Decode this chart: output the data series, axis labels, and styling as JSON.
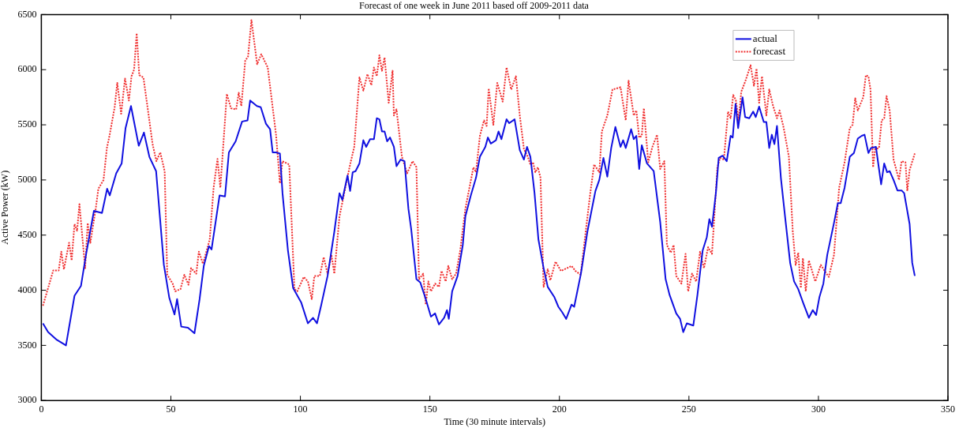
{
  "chart_data": {
    "type": "line",
    "title": "Forecast of one week in June 2011 based off 2009-2011 data",
    "xlabel": "Time (30 minute intervals)",
    "ylabel": "Active Power (kW)",
    "xlim": [
      0,
      350
    ],
    "xticks": [
      0,
      50,
      100,
      150,
      200,
      250,
      300,
      350
    ],
    "ylim": [
      3000,
      6500
    ],
    "yticks": [
      3000,
      3500,
      4000,
      4500,
      5000,
      5500,
      6000,
      6500
    ],
    "grid": false,
    "legend": "top right",
    "marker": "none",
    "series": [
      {
        "name": "actual",
        "color": "#1010e0",
        "line_style": "solid",
        "x": [
          0.6,
          2.6,
          6,
          9.5,
          12.8,
          15.3,
          17.3,
          20.3,
          23.4,
          25.4,
          26.4,
          28.9,
          31,
          32.5,
          34.6,
          37.6,
          39.6,
          41.7,
          44.3,
          47.3,
          49.4,
          51.4,
          52.4,
          54,
          56.6,
          59.1,
          61.1,
          62.7,
          64.7,
          65.7,
          68.8,
          70.9,
          72.4,
          75,
          77.5,
          79.6,
          80.6,
          83.2,
          84.7,
          86.7,
          88.3,
          89.3,
          90.6,
          92.1,
          93.1,
          95.2,
          97.2,
          100.3,
          102.9,
          104.9,
          106.4,
          108,
          110.5,
          113.1,
          115.1,
          116.2,
          118.2,
          119.2,
          120.2,
          121.3,
          122.8,
          124.3,
          125.4,
          126.9,
          128.4,
          129.5,
          130.5,
          131.5,
          132.5,
          133.5,
          134.6,
          136.1,
          137.1,
          138.7,
          140.2,
          141.7,
          142.8,
          144.8,
          146.3,
          148.4,
          150.4,
          152,
          153.5,
          155.5,
          156.6,
          157.3,
          158.6,
          160.7,
          162.7,
          163.7,
          165.8,
          167.8,
          169.3,
          171.4,
          172.4,
          173.5,
          175.5,
          176.5,
          177.6,
          179.6,
          180.6,
          182.7,
          184.7,
          186.3,
          187.5,
          188.8,
          190.4,
          191.9,
          193.9,
          195.5,
          198,
          199.6,
          201.1,
          202.6,
          204.7,
          205.7,
          208.3,
          210.8,
          213.9,
          215.4,
          217,
          218.5,
          220,
          221.6,
          223.6,
          224.6,
          225.6,
          227.7,
          228.7,
          229.7,
          230.8,
          231.8,
          233.8,
          236.4,
          238.9,
          241,
          242.5,
          245.1,
          246.6,
          247.8,
          249.2,
          251.7,
          253.3,
          255.3,
          256.9,
          257.9,
          258.9,
          260.4,
          261.5,
          263,
          264.6,
          266.1,
          266.9,
          268,
          269,
          270.7,
          271.7,
          273.3,
          274.8,
          275.8,
          277.1,
          278.9,
          279.9,
          281,
          282,
          283,
          284,
          285.5,
          287.1,
          289.1,
          290.6,
          292.2,
          294.2,
          296.3,
          297.8,
          299.1,
          300.4,
          301.9,
          303.4,
          306,
          307.5,
          308.6,
          310.1,
          312.1,
          313.7,
          315.2,
          316.7,
          317.8,
          319.3,
          320.3,
          322.2,
          324.2,
          325.4,
          326.5,
          327.5,
          329,
          330.5,
          332.1,
          333.1,
          335.2,
          336.2,
          337.2
        ],
        "values": [
          3700,
          3620,
          3550,
          3500,
          3950,
          4040,
          4330,
          4720,
          4700,
          4920,
          4860,
          5060,
          5150,
          5470,
          5670,
          5310,
          5430,
          5210,
          5080,
          4230,
          3930,
          3780,
          3920,
          3670,
          3660,
          3610,
          3920,
          4220,
          4400,
          4370,
          4860,
          4850,
          5250,
          5350,
          5530,
          5540,
          5720,
          5670,
          5660,
          5510,
          5460,
          5250,
          5250,
          5240,
          4880,
          4360,
          4020,
          3890,
          3700,
          3750,
          3700,
          3860,
          4130,
          4530,
          4880,
          4820,
          5040,
          4900,
          5070,
          5080,
          5150,
          5360,
          5300,
          5370,
          5370,
          5560,
          5550,
          5440,
          5440,
          5350,
          5385,
          5300,
          5125,
          5185,
          5170,
          4740,
          4550,
          4100,
          4070,
          3920,
          3760,
          3790,
          3690,
          3750,
          3820,
          3740,
          3990,
          4130,
          4410,
          4670,
          4860,
          5020,
          5210,
          5300,
          5385,
          5330,
          5360,
          5440,
          5370,
          5550,
          5515,
          5550,
          5270,
          5185,
          5300,
          5210,
          4880,
          4460,
          4200,
          4030,
          3940,
          3850,
          3800,
          3740,
          3870,
          3850,
          4150,
          4530,
          4900,
          5000,
          5200,
          5030,
          5290,
          5480,
          5300,
          5360,
          5290,
          5460,
          5370,
          5400,
          5100,
          5315,
          5150,
          5080,
          4620,
          4100,
          3960,
          3790,
          3740,
          3620,
          3700,
          3680,
          3960,
          4360,
          4480,
          4645,
          4575,
          4880,
          5200,
          5220,
          5170,
          5400,
          5385,
          5690,
          5470,
          5750,
          5570,
          5560,
          5620,
          5570,
          5665,
          5525,
          5525,
          5290,
          5410,
          5325,
          5490,
          5020,
          4670,
          4245,
          4080,
          4010,
          3880,
          3750,
          3820,
          3775,
          3940,
          4060,
          4320,
          4610,
          4790,
          4790,
          4930,
          5210,
          5245,
          5375,
          5400,
          5410,
          5245,
          5290,
          5300,
          4960,
          5150,
          5070,
          5080,
          5000,
          4905,
          4905,
          4880,
          4600,
          4250,
          4130
        ]
      },
      {
        "name": "forecast",
        "color": "#f03030",
        "line_style": "dotted",
        "x": [
          0.6,
          4.6,
          6.7,
          7.7,
          8.7,
          10.7,
          11.7,
          12.8,
          13.8,
          14.7,
          16.9,
          17.9,
          18.9,
          21,
          22,
          24,
          25.3,
          26.3,
          28.3,
          29.3,
          30.8,
          32.3,
          33.8,
          34.8,
          35.8,
          36.8,
          37.8,
          39.4,
          41.4,
          42.9,
          44.4,
          45.9,
          47.6,
          48.6,
          50.7,
          51.7,
          53.7,
          55.2,
          56.8,
          57.8,
          59.8,
          60.8,
          62.4,
          65,
          66.5,
          68,
          69.1,
          71.6,
          73.2,
          75.2,
          76.2,
          77.2,
          78.7,
          79.8,
          81.1,
          83.3,
          84.9,
          87.4,
          90.6,
          92.1,
          93.1,
          95.7,
          97.7,
          98.8,
          101.3,
          102.9,
          104.4,
          105.4,
          107.5,
          109,
          110.5,
          112,
          113.1,
          115.1,
          117.7,
          119.2,
          120.8,
          122.8,
          124.3,
          125.9,
          127.4,
          128.4,
          129.5,
          130.5,
          131.5,
          132.5,
          134.1,
          135.6,
          136.1,
          137.1,
          139.2,
          141.2,
          143.3,
          144.8,
          145.8,
          147.4,
          148.4,
          149.4,
          150.4,
          152,
          153.5,
          154.5,
          156.1,
          157.1,
          158.6,
          160.1,
          161.7,
          163.7,
          166.8,
          167.8,
          169.3,
          170.9,
          171.9,
          172.7,
          174.5,
          176,
          178.1,
          179.6,
          181.4,
          183.2,
          184.7,
          186.3,
          187.8,
          188.8,
          189.8,
          190.7,
          191.7,
          192.7,
          193.9,
          195.5,
          196.5,
          198.5,
          200.6,
          204.7,
          206.2,
          208.2,
          209.8,
          211.8,
          213.4,
          215.4,
          216.4,
          218.5,
          220.5,
          223.6,
          225.6,
          226.7,
          228.7,
          229.7,
          230.8,
          231.8,
          232.6,
          234.3,
          235.9,
          237.7,
          238.9,
          240.5,
          241.5,
          243,
          244.1,
          245.1,
          247.1,
          248.7,
          249.7,
          251.2,
          252.8,
          254.3,
          255.8,
          257.4,
          258.9,
          261,
          262,
          263.5,
          265.1,
          266.1,
          267.1,
          268.1,
          269.2,
          270.2,
          271.7,
          273.8,
          275.1,
          276.1,
          277.1,
          278.2,
          279.9,
          281,
          282.5,
          284,
          285,
          286.6,
          288.6,
          290.1,
          291.2,
          292.2,
          293.2,
          294,
          295.1,
          296.3,
          298.8,
          300.9,
          302.4,
          304,
          306,
          308,
          310.1,
          312.1,
          313.2,
          314.2,
          315.2,
          317.3,
          318.3,
          319.3,
          320.1,
          321.1,
          321.9,
          323.4,
          324.4,
          325.4,
          326.3,
          327.5,
          329,
          331.1,
          332.1,
          333.6,
          334.3,
          335.2,
          337.2
        ],
        "values": [
          3860,
          4180,
          4180,
          4350,
          4190,
          4430,
          4270,
          4600,
          4540,
          4780,
          4200,
          4610,
          4430,
          4740,
          4920,
          5000,
          5290,
          5400,
          5660,
          5880,
          5600,
          5920,
          5720,
          5940,
          6000,
          6330,
          5950,
          5930,
          5590,
          5330,
          5170,
          5250,
          5080,
          4140,
          4060,
          3990,
          4010,
          4140,
          4050,
          4200,
          4150,
          4350,
          4240,
          4460,
          4930,
          5190,
          4930,
          5780,
          5650,
          5640,
          5790,
          5670,
          6080,
          6120,
          6450,
          6050,
          6140,
          6020,
          5410,
          4970,
          5170,
          5140,
          4010,
          3990,
          4120,
          4080,
          3920,
          4130,
          4130,
          4300,
          4150,
          4320,
          4150,
          4670,
          4970,
          5140,
          5300,
          5930,
          5810,
          5960,
          5860,
          6020,
          5940,
          6130,
          5990,
          6110,
          5700,
          5990,
          5585,
          5640,
          5210,
          5060,
          5170,
          5115,
          4100,
          4150,
          3870,
          4080,
          3990,
          4060,
          4030,
          4175,
          4080,
          4220,
          4100,
          4150,
          4360,
          4740,
          5115,
          5070,
          5400,
          5540,
          5490,
          5830,
          5500,
          5880,
          5710,
          6020,
          5820,
          5940,
          5585,
          5280,
          5210,
          5140,
          5160,
          5070,
          5115,
          5020,
          4030,
          4190,
          4090,
          4260,
          4175,
          4220,
          4175,
          4140,
          4460,
          4860,
          5140,
          5070,
          5440,
          5585,
          5820,
          5840,
          5540,
          5900,
          5585,
          5630,
          5385,
          5400,
          5650,
          5160,
          5300,
          5410,
          5100,
          5170,
          4410,
          4340,
          4410,
          4130,
          4060,
          4330,
          3990,
          4150,
          4080,
          4350,
          4200,
          4390,
          4330,
          5115,
          5200,
          5185,
          5620,
          5560,
          5770,
          5725,
          5540,
          5800,
          5890,
          6040,
          5855,
          6010,
          5700,
          5940,
          5585,
          5820,
          5670,
          5560,
          5630,
          5470,
          5210,
          4530,
          4230,
          4340,
          4020,
          4290,
          3990,
          4270,
          4080,
          4230,
          4175,
          4120,
          4320,
          4930,
          5160,
          5470,
          5500,
          5740,
          5630,
          5750,
          5950,
          5940,
          5820,
          5115,
          5280,
          5290,
          5540,
          5560,
          5760,
          5630,
          5185,
          5000,
          5170,
          5160,
          4900,
          5090,
          5240
        ]
      }
    ]
  }
}
